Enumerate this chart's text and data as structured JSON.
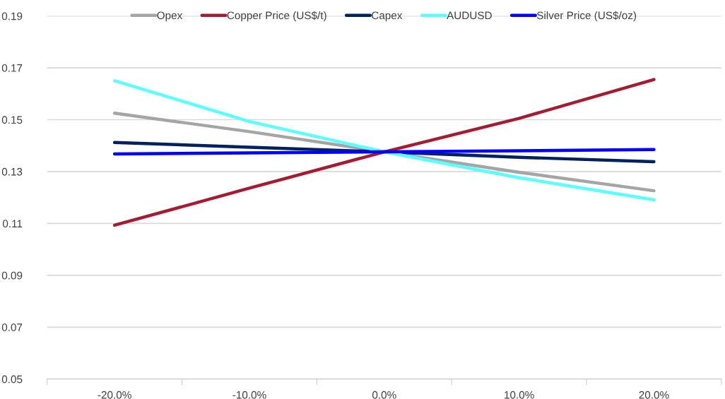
{
  "chart_data": {
    "type": "line",
    "categories": [
      "-20.0%",
      "-10.0%",
      "0.0%",
      "10.0%",
      "20.0%"
    ],
    "series": [
      {
        "name": "Opex",
        "color": "#a5a5a5",
        "values": [
          0.1525,
          0.1454,
          0.1376,
          0.1297,
          0.1226
        ]
      },
      {
        "name": "Copper Price (US$/t)",
        "color": "#a51c30",
        "values": [
          0.1093,
          0.1236,
          0.1376,
          0.1505,
          0.1655
        ]
      },
      {
        "name": "Capex",
        "color": "#002060",
        "values": [
          0.1412,
          0.1394,
          0.1376,
          0.1355,
          0.1338
        ]
      },
      {
        "name": "AUDUSD",
        "color": "#5bffff",
        "values": [
          0.165,
          0.1493,
          0.1376,
          0.1276,
          0.1191
        ]
      },
      {
        "name": "Silver Price (US$/oz)",
        "color": "#0000ff",
        "values": [
          0.1368,
          0.1372,
          0.1376,
          0.138,
          0.1385
        ]
      }
    ],
    "ylim": [
      0.05,
      0.19
    ],
    "yticks": [
      {
        "value": 0.05,
        "label": "0.05"
      },
      {
        "value": 0.07,
        "label": "0.07"
      },
      {
        "value": 0.09,
        "label": "0.09"
      },
      {
        "value": 0.11,
        "label": "0.11"
      },
      {
        "value": 0.13,
        "label": "0.13"
      },
      {
        "value": 0.15,
        "label": "0.15"
      },
      {
        "value": 0.17,
        "label": "0.17"
      },
      {
        "value": 0.19,
        "label": "0.19"
      }
    ],
    "grid": "y",
    "legend": "top",
    "marker": "none",
    "line_style": "solid"
  }
}
